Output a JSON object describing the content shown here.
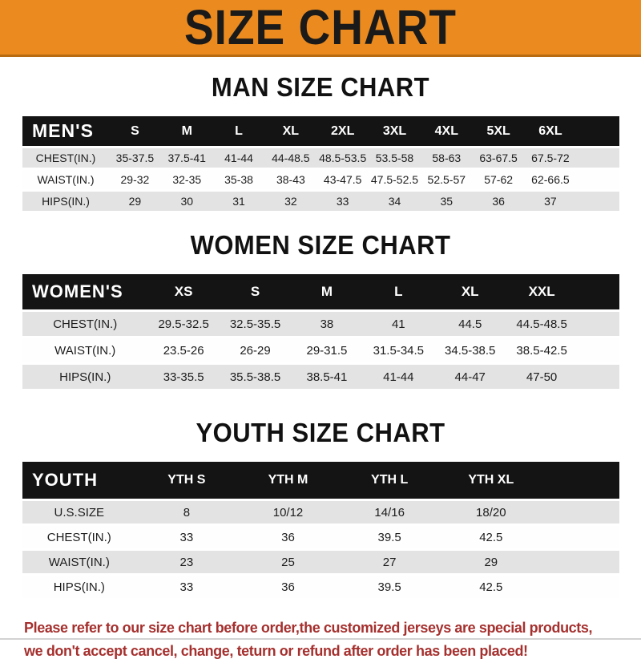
{
  "banner": {
    "title": "SIZE CHART",
    "bg_color": "#EA8A1F",
    "text_color": "#1A1A1A"
  },
  "sections": [
    {
      "heading": "MAN SIZE CHART",
      "corner_label": "MEN'S",
      "columns": [
        "S",
        "M",
        "L",
        "XL",
        "2XL",
        "3XL",
        "4XL",
        "5XL",
        "6XL"
      ],
      "rows": [
        {
          "label": "CHEST(IN.)",
          "values": [
            "35-37.5",
            "37.5-41",
            "41-44",
            "44-48.5",
            "48.5-53.5",
            "53.5-58",
            "58-63",
            "63-67.5",
            "67.5-72"
          ]
        },
        {
          "label": "WAIST(IN.)",
          "values": [
            "29-32",
            "32-35",
            "35-38",
            "38-43",
            "43-47.5",
            "47.5-52.5",
            "52.5-57",
            "57-62",
            "62-66.5"
          ]
        },
        {
          "label": "HIPS(IN.)",
          "values": [
            "29",
            "30",
            "31",
            "32",
            "33",
            "34",
            "35",
            "36",
            "37"
          ]
        }
      ]
    },
    {
      "heading": "WOMEN SIZE CHART",
      "corner_label": "WOMEN'S",
      "columns": [
        "XS",
        "S",
        "M",
        "L",
        "XL",
        "XXL"
      ],
      "rows": [
        {
          "label": "CHEST(IN.)",
          "values": [
            "29.5-32.5",
            "32.5-35.5",
            "38",
            "41",
            "44.5",
            "44.5-48.5"
          ]
        },
        {
          "label": "WAIST(IN.)",
          "values": [
            "23.5-26",
            "26-29",
            "29-31.5",
            "31.5-34.5",
            "34.5-38.5",
            "38.5-42.5"
          ]
        },
        {
          "label": "HIPS(IN.)",
          "values": [
            "33-35.5",
            "35.5-38.5",
            "38.5-41",
            "41-44",
            "44-47",
            "47-50"
          ]
        }
      ]
    },
    {
      "heading": "YOUTH SIZE CHART",
      "corner_label": "YOUTH",
      "columns": [
        "YTH S",
        "YTH M",
        "YTH L",
        "YTH XL"
      ],
      "rows": [
        {
          "label": "U.S.SIZE",
          "values": [
            "8",
            "10/12",
            "14/16",
            "18/20"
          ]
        },
        {
          "label": "CHEST(IN.)",
          "values": [
            "33",
            "36",
            "39.5",
            "42.5"
          ]
        },
        {
          "label": "WAIST(IN.)",
          "values": [
            "23",
            "25",
            "27",
            "29"
          ]
        },
        {
          "label": "HIPS(IN.)",
          "values": [
            "33",
            "36",
            "39.5",
            "42.5"
          ]
        }
      ]
    }
  ],
  "footer": {
    "line1": "Please refer to our size chart before order,the customized jerseys are special products,",
    "line2": "we don't accept cancel, change, teturn or refund after order has been placed!",
    "text_color": "#A5302E"
  },
  "colors": {
    "header_bar": "#141414",
    "row_gray": "#E3E3E3",
    "row_white": "#FEFEFE",
    "banner_orange": "#EA8A1F"
  }
}
